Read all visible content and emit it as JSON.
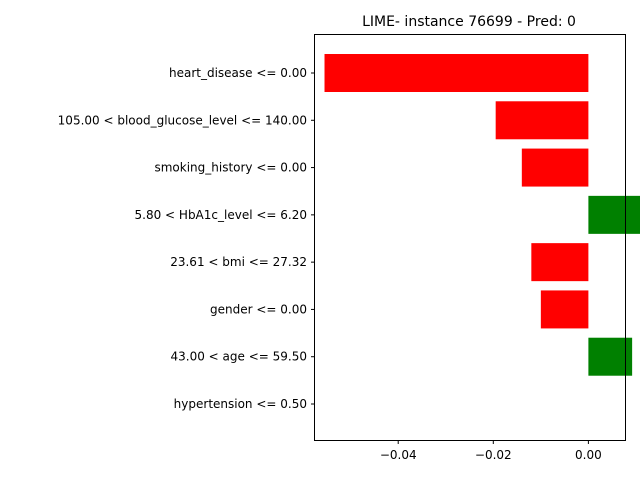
{
  "chart_data": {
    "type": "bar",
    "orientation": "horizontal",
    "title": "LIME- instance 76699 - Pred: 0",
    "xlabel": "",
    "ylabel": "",
    "xlim": [
      -0.0575,
      0.0077
    ],
    "xticks": [
      -0.04,
      -0.02,
      0.0
    ],
    "xtick_labels": [
      "−0.04",
      "−0.02",
      "0.00"
    ],
    "grid": false,
    "categories": [
      "heart_disease <= 0.00",
      "105.00 < blood_glucose_level <= 140.00",
      "smoking_history <= 0.00",
      "5.80 < HbA1c_level <= 6.20",
      "23.61 < bmi <= 27.32",
      "gender <= 0.00",
      "43.00 < age <= 59.50",
      "hypertension <= 0.50"
    ],
    "values": [
      -0.0555,
      -0.0195,
      -0.014,
      0.012,
      -0.012,
      -0.01,
      0.0092,
      0.0
    ],
    "colors": {
      "negative": "#ff0000",
      "positive": "#008000"
    }
  }
}
